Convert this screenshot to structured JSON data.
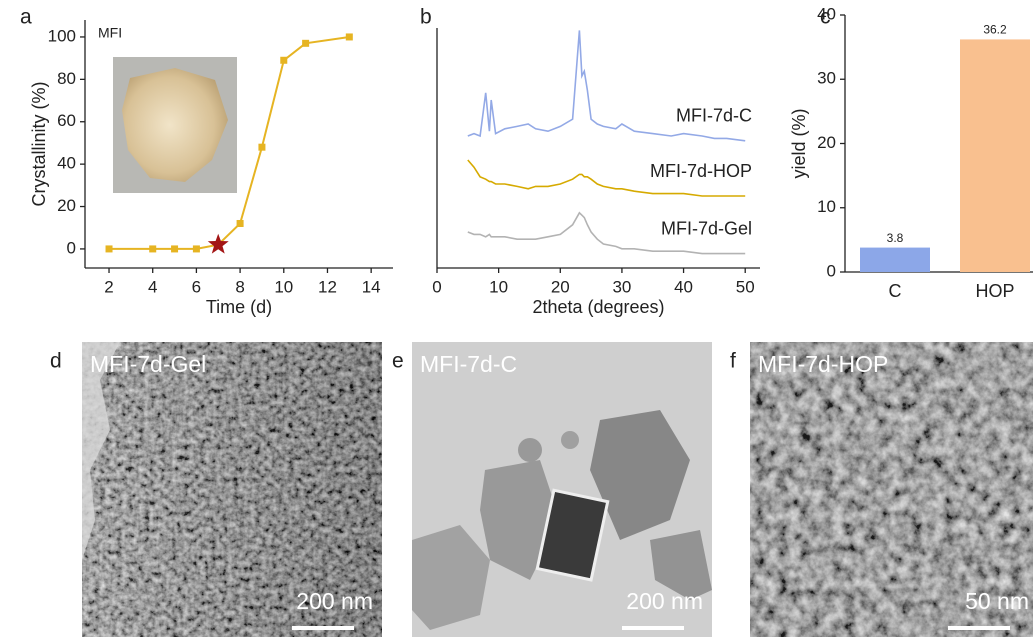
{
  "chart_data": [
    {
      "type": "line",
      "panel": "a",
      "annotation": "MFI",
      "x_label": "Time (d)",
      "y_label": "Crystallinity (%)",
      "x": [
        2,
        4,
        5,
        6,
        7,
        8,
        9,
        10,
        11,
        13
      ],
      "values": [
        0,
        0,
        0,
        0,
        2,
        12,
        48,
        89,
        97,
        100
      ],
      "color": "#e6b422",
      "highlight_index": 4,
      "highlight_color": "#a31515",
      "xlim": [
        0.9,
        15
      ],
      "xticks": [
        2,
        4,
        6,
        8,
        10,
        12,
        14
      ],
      "ylim": [
        -9,
        108
      ],
      "yticks": [
        0,
        20,
        40,
        60,
        80,
        100
      ]
    },
    {
      "type": "line",
      "panel": "b",
      "x_label": "2theta (degrees)",
      "x": [
        5,
        6,
        7,
        7.9,
        8.5,
        8.8,
        9.5,
        11,
        13,
        14.8,
        16,
        18,
        20,
        22,
        23.1,
        23.5,
        23.9,
        24.4,
        25,
        26,
        27,
        29,
        30,
        32,
        35,
        38,
        40,
        43,
        45,
        47,
        50
      ],
      "series": [
        {
          "name": "MFI-7d-C",
          "color": "#93a9e6",
          "values": [
            55,
            56,
            55,
            73,
            57,
            70,
            56,
            58,
            59,
            60,
            58,
            57,
            59,
            62,
            99,
            80,
            82,
            74,
            62,
            60,
            59,
            58,
            60,
            57,
            56,
            55,
            56,
            55,
            54,
            54,
            53
          ]
        },
        {
          "name": "MFI-7d-HOP",
          "color": "#d6aa00",
          "values": [
            45,
            42,
            38,
            37,
            36,
            36,
            35,
            35,
            34,
            33,
            34,
            34,
            35,
            37,
            39,
            39,
            38,
            38,
            37,
            35,
            34,
            33,
            33,
            32,
            31,
            31,
            31,
            30,
            30,
            30,
            30
          ]
        },
        {
          "name": "MFI-7d-Gel",
          "color": "#b3b3b3",
          "values": [
            15,
            14,
            14,
            13,
            14,
            13,
            13,
            13,
            12,
            12,
            12,
            13,
            14,
            18,
            23,
            22,
            21,
            18,
            15,
            12,
            10,
            9,
            8,
            8,
            7,
            7,
            7,
            6,
            6,
            6,
            6
          ]
        }
      ],
      "xlim": [
        0,
        52.4
      ],
      "xticks": [
        0,
        10,
        20,
        30,
        40,
        50
      ],
      "ylim": [
        0,
        100
      ]
    },
    {
      "type": "bar",
      "panel": "c",
      "y_label": "yield (%)",
      "categories": [
        "C",
        "HOP"
      ],
      "values": [
        3.8,
        36.2
      ],
      "colors": [
        "#8ca7e8",
        "#f9c08f"
      ],
      "ylim": [
        0,
        40
      ],
      "yticks": [
        0,
        10,
        20,
        30,
        40
      ]
    }
  ],
  "images": [
    {
      "panel": "d",
      "label": "MFI-7d-Gel",
      "scale_bar": "200 nm"
    },
    {
      "panel": "e",
      "label": "MFI-7d-C",
      "scale_bar": "200 nm"
    },
    {
      "panel": "f",
      "label": "MFI-7d-HOP",
      "scale_bar": "50 nm"
    }
  ]
}
